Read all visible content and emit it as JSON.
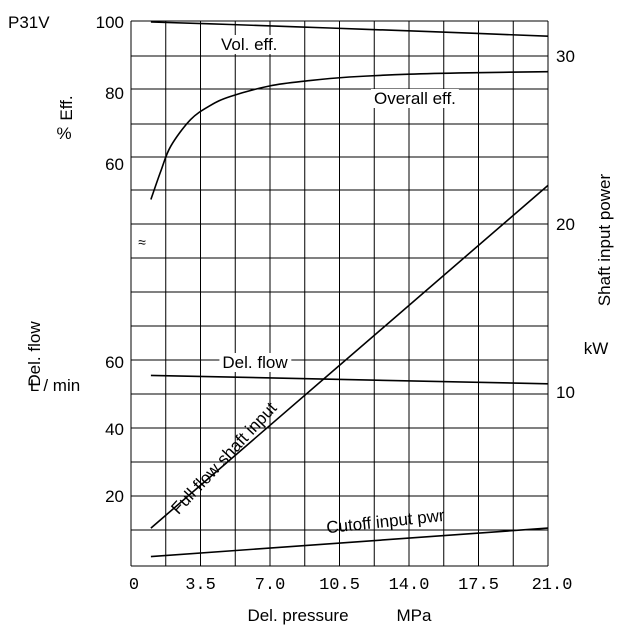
{
  "chart_data": {
    "type": "line",
    "model": "P31V",
    "xlabel": "Del. pressure",
    "xunit": "MPa",
    "xlim": [
      0,
      21
    ],
    "x_ticks": [
      "0",
      "3.5",
      "7.0",
      "10.5",
      "14.0",
      "17.5",
      "21.0"
    ],
    "eff_axis": {
      "label": "Eff.",
      "unit": "%",
      "ticks": [
        100,
        80,
        60
      ],
      "break_symbol": "≈"
    },
    "flow_axis": {
      "label": "Del. flow",
      "unit": "L / min",
      "ticks": [
        60,
        40,
        20
      ]
    },
    "power_axis": {
      "label": "Shaft input power",
      "unit": "kW",
      "ticks": [
        30,
        20,
        10
      ]
    },
    "series": [
      {
        "name": "Vol. eff.",
        "axis": "eff",
        "x": [
          1,
          5,
          10,
          15,
          21
        ],
        "y": [
          100,
          99.3,
          98.3,
          97.3,
          96
        ]
      },
      {
        "name": "Overall eff.",
        "axis": "eff",
        "x": [
          1,
          1.5,
          2,
          3,
          4,
          5,
          7,
          9,
          11,
          14,
          17,
          21
        ],
        "y": [
          50,
          58,
          65,
          72.5,
          76.5,
          79,
          82,
          83.5,
          84.5,
          85.3,
          85.7,
          86
        ]
      },
      {
        "name": "Del. flow",
        "axis": "flow",
        "x": [
          1,
          21
        ],
        "y": [
          56,
          53.5
        ]
      },
      {
        "name": "Full flow shaft input",
        "axis": "power",
        "x": [
          1,
          21
        ],
        "y": [
          1.9,
          22.3
        ]
      },
      {
        "name": "Cutoff input pwr",
        "axis": "power",
        "x": [
          1,
          21
        ],
        "y": [
          0.2,
          1.9
        ]
      }
    ]
  }
}
